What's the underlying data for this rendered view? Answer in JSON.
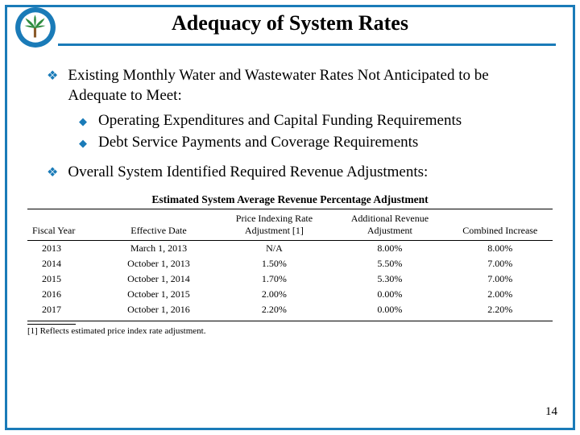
{
  "title": "Adequacy of System Rates",
  "logo": {
    "ring_color": "#1a7bb8",
    "inner_bg": "#ffffff",
    "palm_trunk": "#8a5a2a",
    "palm_frond": "#2e8b3e",
    "text_top": "CITY OF PALM COAST",
    "text_bottom": "FLORIDA"
  },
  "bullets": {
    "b1": "Existing Monthly Water and Wastewater Rates Not Anticipated to be Adequate to Meet:",
    "b1_sub1": "Operating Expenditures and Capital Funding Requirements",
    "b1_sub2": "Debt Service Payments and Coverage Requirements",
    "b2": "Overall System Identified Required Revenue Adjustments:"
  },
  "table": {
    "title": "Estimated System Average Revenue Percentage Adjustment",
    "headers": {
      "c0": "Fiscal Year",
      "c1": "Effective Date",
      "c2": "Price Indexing Rate Adjustment [1]",
      "c3": "Additional Revenue Adjustment",
      "c4": "Combined Increase"
    },
    "rows": [
      {
        "c0": "2013",
        "c1": "March 1, 2013",
        "c2": "N/A",
        "c3": "8.00%",
        "c4": "8.00%"
      },
      {
        "c0": "2014",
        "c1": "October 1, 2013",
        "c2": "1.50%",
        "c3": "5.50%",
        "c4": "7.00%"
      },
      {
        "c0": "2015",
        "c1": "October 1, 2014",
        "c2": "1.70%",
        "c3": "5.30%",
        "c4": "7.00%"
      },
      {
        "c0": "2016",
        "c1": "October 1, 2015",
        "c2": "2.00%",
        "c3": "0.00%",
        "c4": "2.00%"
      },
      {
        "c0": "2017",
        "c1": "October 1, 2016",
        "c2": "2.20%",
        "c3": "0.00%",
        "c4": "2.20%"
      }
    ],
    "footnote": "[1] Reflects estimated price index rate adjustment."
  },
  "page_number": "14"
}
